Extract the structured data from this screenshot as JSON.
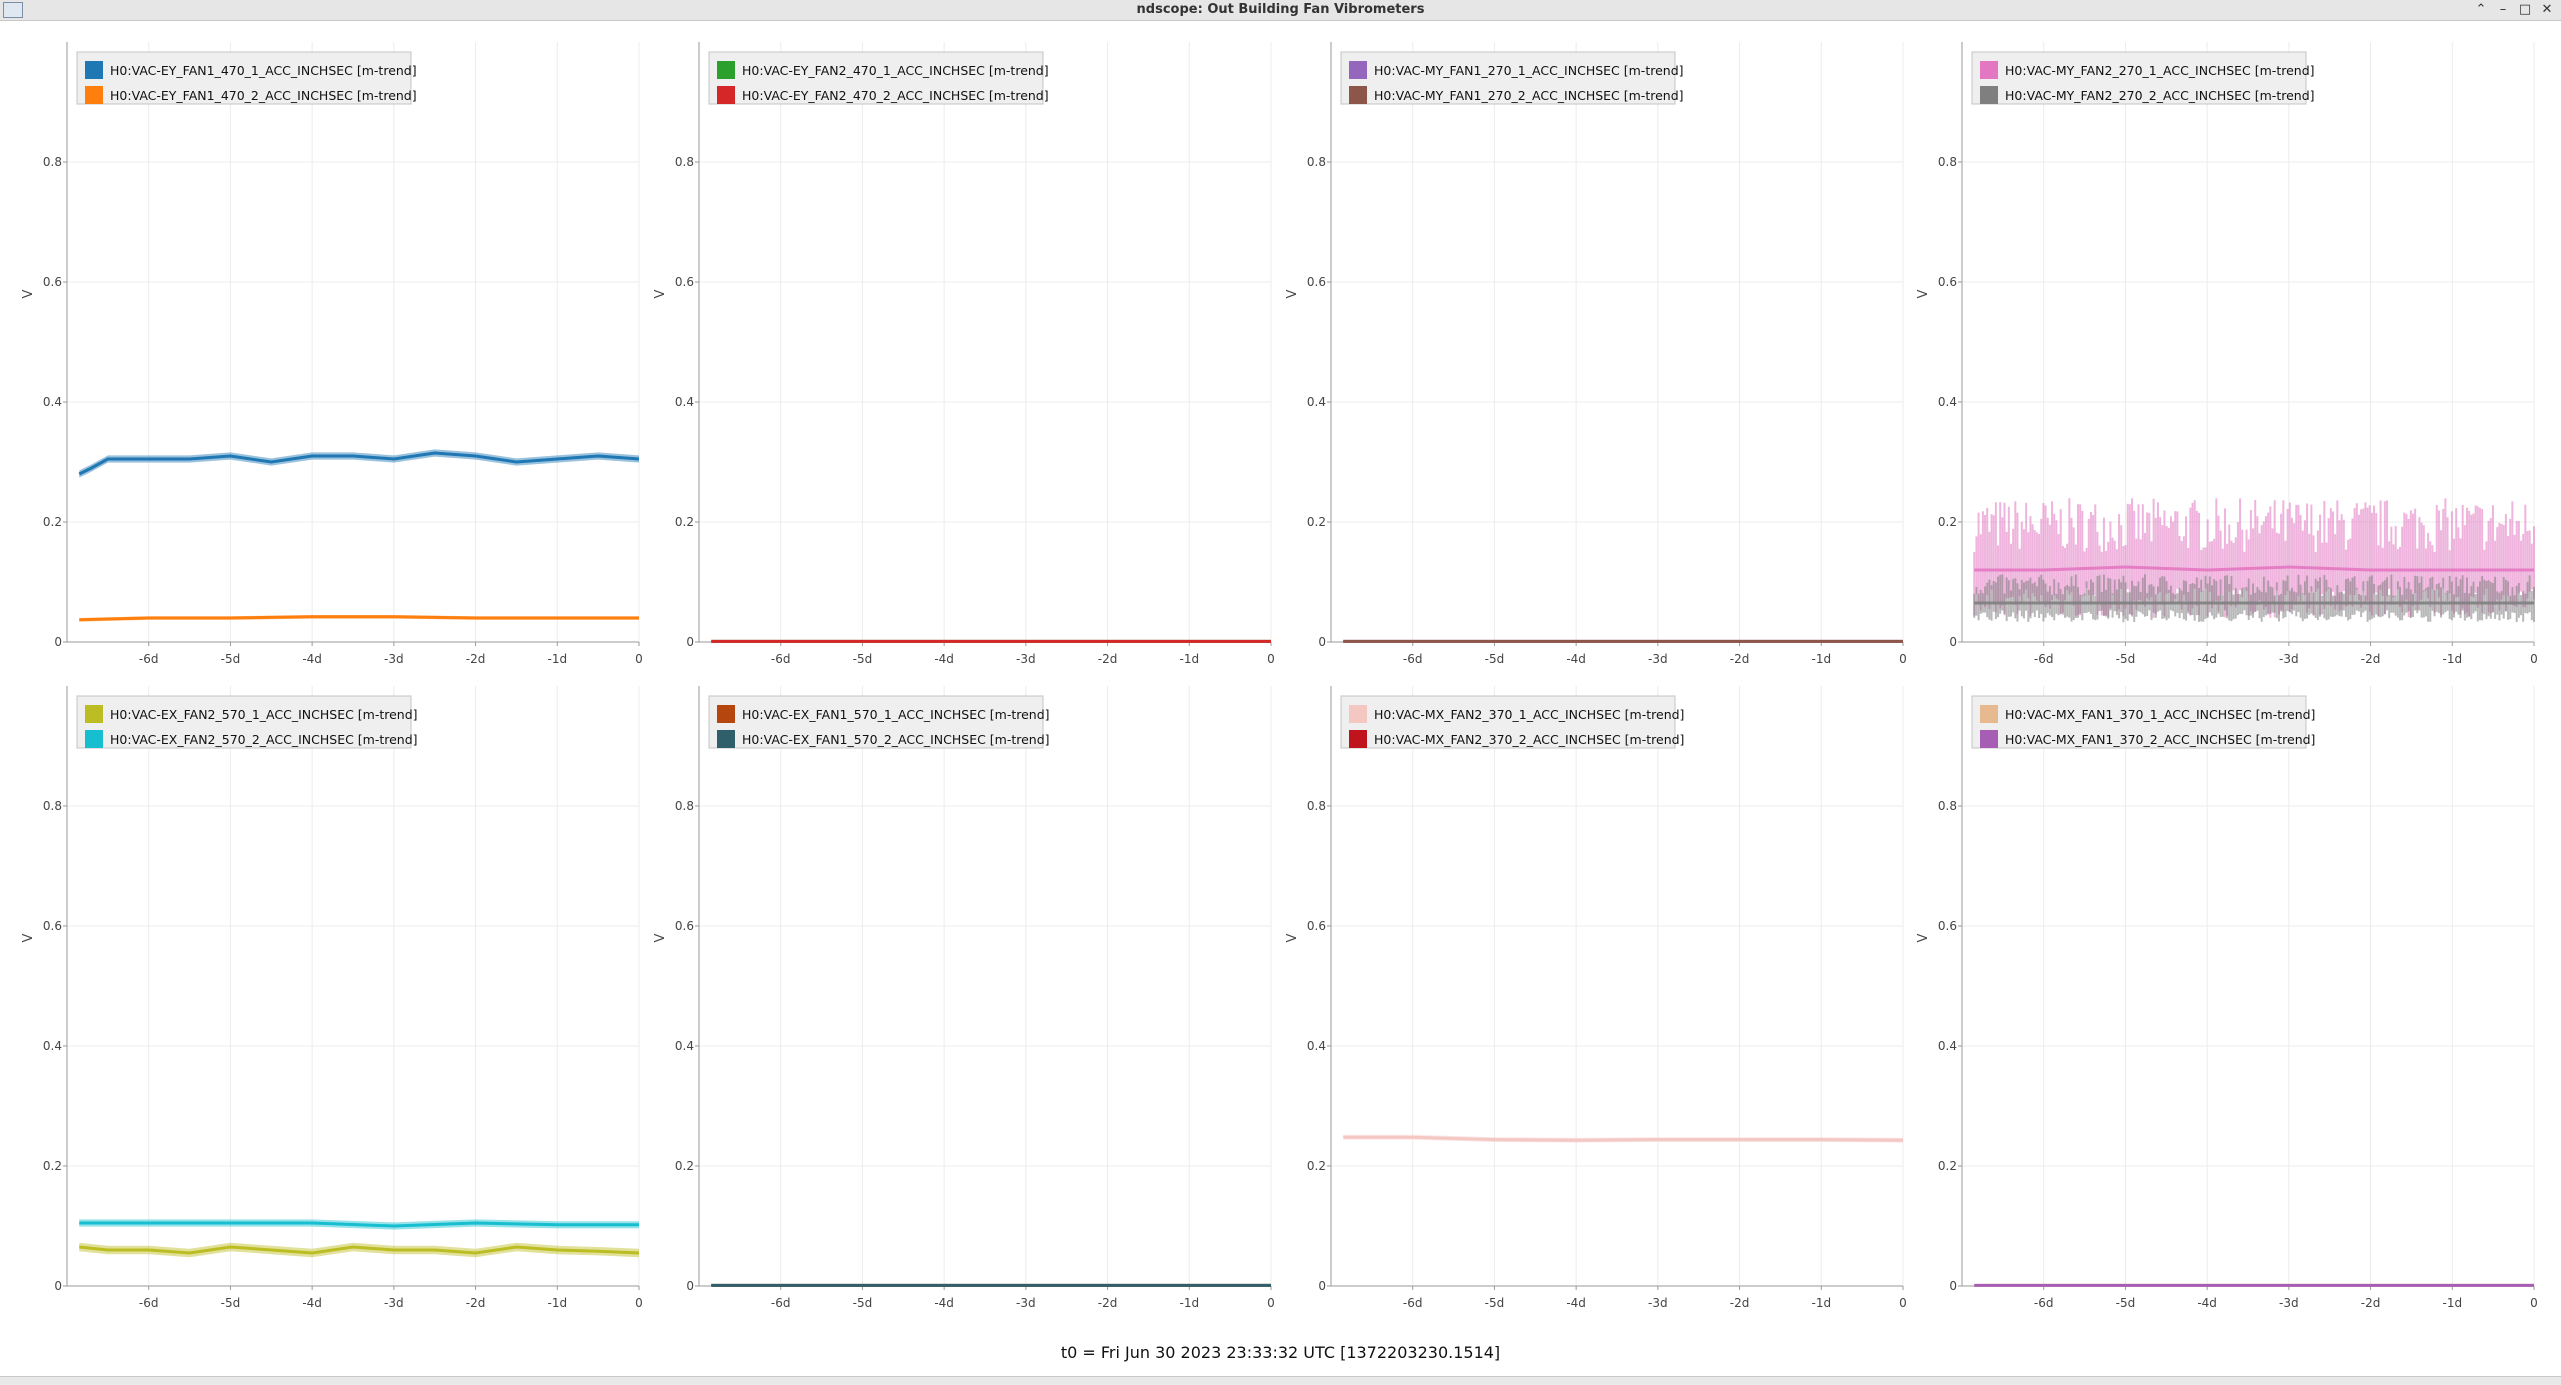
{
  "window": {
    "title": "ndscope: Out Building Fan Vibrometers"
  },
  "footer": {
    "t0_label": "t0 = Fri Jun 30 2023 23:33:32 UTC [1372203230.1514]"
  },
  "chart_data": [
    {
      "type": "line",
      "ylabel": "V",
      "ylim": [
        0,
        1
      ],
      "xlim": [
        -7,
        0
      ],
      "xticks": [
        "-6d",
        "-5d",
        "-4d",
        "-3d",
        "-2d",
        "-1d",
        "0"
      ],
      "x_tick_values": [
        -6,
        -5,
        -4,
        -3,
        -2,
        -1,
        0
      ],
      "yticks": [
        "0",
        "0.2",
        "0.4",
        "0.6",
        "0.8"
      ],
      "y_tick_values": [
        0,
        0.2,
        0.4,
        0.6,
        0.8
      ],
      "grid": true,
      "legend_position": "top-left",
      "series": [
        {
          "name": "H0:VAC-EY_FAN1_470_1_ACC_INCHSEC [m-trend]",
          "color": "#1f77b4",
          "x": [
            -6.85,
            -6.7,
            -6.5,
            -6,
            -5.5,
            -5,
            -4.5,
            -4,
            -3.5,
            -3,
            -2.5,
            -2,
            -1.5,
            -1,
            -0.5,
            0
          ],
          "y": [
            0.28,
            0.29,
            0.305,
            0.305,
            0.305,
            0.31,
            0.3,
            0.31,
            0.31,
            0.305,
            0.315,
            0.31,
            0.3,
            0.305,
            0.31,
            0.305
          ],
          "band": 0.012
        },
        {
          "name": "H0:VAC-EY_FAN1_470_2_ACC_INCHSEC [m-trend]",
          "color": "#ff7f0e",
          "x": [
            -6.85,
            -6,
            -5,
            -4,
            -3,
            -2,
            -1,
            0
          ],
          "y": [
            0.037,
            0.04,
            0.04,
            0.042,
            0.042,
            0.04,
            0.04,
            0.04
          ],
          "band": 0.006
        }
      ]
    },
    {
      "type": "line",
      "ylabel": "V",
      "ylim": [
        0,
        1
      ],
      "xlim": [
        -7,
        0
      ],
      "xticks": [
        "-6d",
        "-5d",
        "-4d",
        "-3d",
        "-2d",
        "-1d",
        "0"
      ],
      "x_tick_values": [
        -6,
        -5,
        -4,
        -3,
        -2,
        -1,
        0
      ],
      "yticks": [
        "0",
        "0.2",
        "0.4",
        "0.6",
        "0.8"
      ],
      "y_tick_values": [
        0,
        0.2,
        0.4,
        0.6,
        0.8
      ],
      "grid": true,
      "legend_position": "top-left",
      "series": [
        {
          "name": "H0:VAC-EY_FAN2_470_1_ACC_INCHSEC [m-trend]",
          "color": "#2ca02c",
          "x": [
            -6.85,
            0
          ],
          "y": [
            0.001,
            0.001
          ],
          "band": 0.002
        },
        {
          "name": "H0:VAC-EY_FAN2_470_2_ACC_INCHSEC [m-trend]",
          "color": "#d62728",
          "x": [
            -6.85,
            0
          ],
          "y": [
            0.001,
            0.001
          ],
          "band": 0.002
        }
      ]
    },
    {
      "type": "line",
      "ylabel": "V",
      "ylim": [
        0,
        1
      ],
      "xlim": [
        -7,
        0
      ],
      "xticks": [
        "-6d",
        "-5d",
        "-4d",
        "-3d",
        "-2d",
        "-1d",
        "0"
      ],
      "x_tick_values": [
        -6,
        -5,
        -4,
        -3,
        -2,
        -1,
        0
      ],
      "yticks": [
        "0",
        "0.2",
        "0.4",
        "0.6",
        "0.8"
      ],
      "y_tick_values": [
        0,
        0.2,
        0.4,
        0.6,
        0.8
      ],
      "grid": true,
      "legend_position": "top-left",
      "series": [
        {
          "name": "H0:VAC-MY_FAN1_270_1_ACC_INCHSEC [m-trend]",
          "color": "#9467bd",
          "x": [
            -6.85,
            0
          ],
          "y": [
            0.001,
            0.001
          ],
          "band": 0.002
        },
        {
          "name": "H0:VAC-MY_FAN1_270_2_ACC_INCHSEC [m-trend]",
          "color": "#8c564b",
          "x": [
            -6.85,
            0
          ],
          "y": [
            0.001,
            0.001
          ],
          "band": 0.002
        }
      ]
    },
    {
      "type": "line",
      "ylabel": "V",
      "ylim": [
        0,
        1
      ],
      "xlim": [
        -7,
        0
      ],
      "xticks": [
        "-6d",
        "-5d",
        "-4d",
        "-3d",
        "-2d",
        "-1d",
        "0"
      ],
      "x_tick_values": [
        -6,
        -5,
        -4,
        -3,
        -2,
        -1,
        0
      ],
      "yticks": [
        "0",
        "0.2",
        "0.4",
        "0.6",
        "0.8"
      ],
      "y_tick_values": [
        0,
        0.2,
        0.4,
        0.6,
        0.8
      ],
      "grid": true,
      "legend_position": "top-left",
      "series": [
        {
          "name": "H0:VAC-MY_FAN2_270_1_ACC_INCHSEC [m-trend]",
          "color": "#e377c2",
          "x": [
            -6.85,
            -6,
            -5,
            -4,
            -3,
            -2,
            -1,
            0
          ],
          "y": [
            0.12,
            0.12,
            0.125,
            0.12,
            0.125,
            0.12,
            0.12,
            0.12
          ],
          "band": 0.1,
          "noisy": true
        },
        {
          "name": "H0:VAC-MY_FAN2_270_2_ACC_INCHSEC [m-trend]",
          "color": "#7f7f7f",
          "x": [
            -6.85,
            -6,
            -5,
            -4,
            -3,
            -2,
            -1,
            0
          ],
          "y": [
            0.065,
            0.065,
            0.065,
            0.065,
            0.065,
            0.065,
            0.065,
            0.065
          ],
          "band": 0.04,
          "noisy": true
        }
      ]
    },
    {
      "type": "line",
      "ylabel": "V",
      "ylim": [
        0,
        1
      ],
      "xlim": [
        -7,
        0
      ],
      "xticks": [
        "-6d",
        "-5d",
        "-4d",
        "-3d",
        "-2d",
        "-1d",
        "0"
      ],
      "x_tick_values": [
        -6,
        -5,
        -4,
        -3,
        -2,
        -1,
        0
      ],
      "yticks": [
        "0",
        "0.2",
        "0.4",
        "0.6",
        "0.8"
      ],
      "y_tick_values": [
        0,
        0.2,
        0.4,
        0.6,
        0.8
      ],
      "grid": true,
      "legend_position": "top-left",
      "series": [
        {
          "name": "H0:VAC-EX_FAN2_570_1_ACC_INCHSEC [m-trend]",
          "color": "#bcbd22",
          "x": [
            -6.85,
            -6.5,
            -6,
            -5.5,
            -5,
            -4.5,
            -4,
            -3.5,
            -3,
            -2.5,
            -2,
            -1.5,
            -1,
            -0.5,
            0
          ],
          "y": [
            0.065,
            0.06,
            0.06,
            0.055,
            0.065,
            0.06,
            0.055,
            0.065,
            0.06,
            0.06,
            0.055,
            0.065,
            0.06,
            0.058,
            0.055
          ],
          "band": 0.014
        },
        {
          "name": "H0:VAC-EX_FAN2_570_2_ACC_INCHSEC [m-trend]",
          "color": "#17becf",
          "x": [
            -6.85,
            -6,
            -5,
            -4,
            -3,
            -2,
            -1,
            0
          ],
          "y": [
            0.105,
            0.105,
            0.105,
            0.105,
            0.1,
            0.105,
            0.102,
            0.102
          ],
          "band": 0.012
        }
      ]
    },
    {
      "type": "line",
      "ylabel": "V",
      "ylim": [
        0,
        1
      ],
      "xlim": [
        -7,
        0
      ],
      "xticks": [
        "-6d",
        "-5d",
        "-4d",
        "-3d",
        "-2d",
        "-1d",
        "0"
      ],
      "x_tick_values": [
        -6,
        -5,
        -4,
        -3,
        -2,
        -1,
        0
      ],
      "yticks": [
        "0",
        "0.2",
        "0.4",
        "0.6",
        "0.8"
      ],
      "y_tick_values": [
        0,
        0.2,
        0.4,
        0.6,
        0.8
      ],
      "grid": true,
      "legend_position": "top-left",
      "series": [
        {
          "name": "H0:VAC-EX_FAN1_570_1_ACC_INCHSEC [m-trend]",
          "color": "#b5470e",
          "x": [
            -6.85,
            0
          ],
          "y": [
            0.001,
            0.001
          ],
          "band": 0.002
        },
        {
          "name": "H0:VAC-EX_FAN1_570_2_ACC_INCHSEC [m-trend]",
          "color": "#2f5f6b",
          "x": [
            -6.85,
            0
          ],
          "y": [
            0.001,
            0.001
          ],
          "band": 0.003
        }
      ]
    },
    {
      "type": "line",
      "ylabel": "V",
      "ylim": [
        0,
        1
      ],
      "xlim": [
        -7,
        0
      ],
      "xticks": [
        "-6d",
        "-5d",
        "-4d",
        "-3d",
        "-2d",
        "-1d",
        "0"
      ],
      "x_tick_values": [
        -6,
        -5,
        -4,
        -3,
        -2,
        -1,
        0
      ],
      "yticks": [
        "0",
        "0.2",
        "0.4",
        "0.6",
        "0.8"
      ],
      "y_tick_values": [
        0,
        0.2,
        0.4,
        0.6,
        0.8
      ],
      "grid": true,
      "legend_position": "top-left",
      "series": [
        {
          "name": "H0:VAC-MX_FAN2_370_1_ACC_INCHSEC [m-trend]",
          "color": "#f4c7c3",
          "x": [
            -6.85,
            -6,
            -5,
            -4,
            -3,
            -2,
            -1,
            0
          ],
          "y": [
            0.248,
            0.248,
            0.244,
            0.243,
            0.244,
            0.244,
            0.244,
            0.243
          ],
          "band": 0.008
        },
        {
          "name": "H0:VAC-MX_FAN2_370_2_ACC_INCHSEC [m-trend]",
          "color": "#c0141c",
          "x": [],
          "y": [],
          "band": 0
        }
      ]
    },
    {
      "type": "line",
      "ylabel": "V",
      "ylim": [
        0,
        1
      ],
      "xlim": [
        -7,
        0
      ],
      "xticks": [
        "-6d",
        "-5d",
        "-4d",
        "-3d",
        "-2d",
        "-1d",
        "0"
      ],
      "x_tick_values": [
        -6,
        -5,
        -4,
        -3,
        -2,
        -1,
        0
      ],
      "yticks": [
        "0",
        "0.2",
        "0.4",
        "0.6",
        "0.8"
      ],
      "y_tick_values": [
        0,
        0.2,
        0.4,
        0.6,
        0.8
      ],
      "grid": true,
      "legend_position": "top-left",
      "series": [
        {
          "name": "H0:VAC-MX_FAN1_370_1_ACC_INCHSEC [m-trend]",
          "color": "#e6b98f",
          "x": [
            -6.85,
            0
          ],
          "y": [
            0.001,
            0.001
          ],
          "band": 0.002
        },
        {
          "name": "H0:VAC-MX_FAN1_370_2_ACC_INCHSEC [m-trend]",
          "color": "#a55eb3",
          "x": [
            -6.85,
            0
          ],
          "y": [
            0.001,
            0.001
          ],
          "band": 0.002
        }
      ]
    }
  ]
}
